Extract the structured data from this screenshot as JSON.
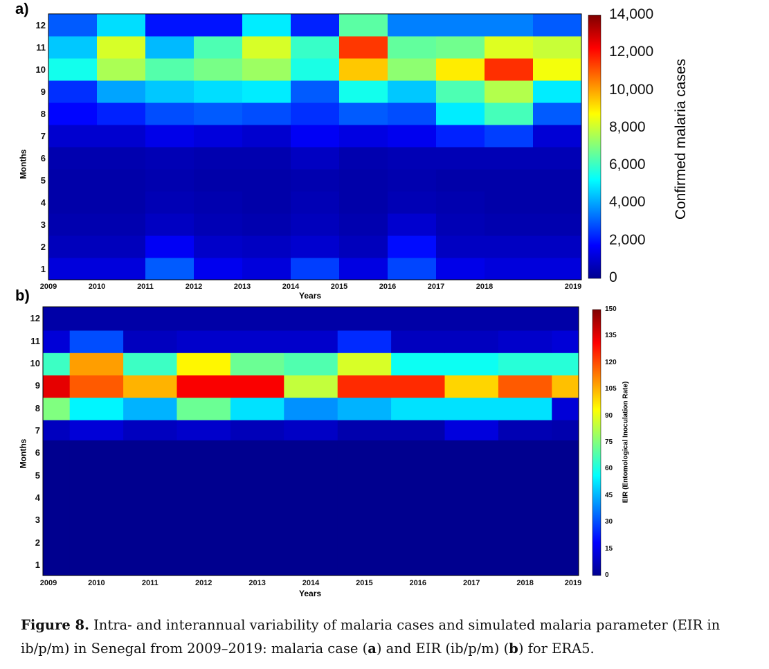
{
  "chart_data": [
    {
      "panel": "a)",
      "type": "heatmap",
      "xlabel": "Years",
      "ylabel": "Months",
      "colorbar_label": "Confirmed malaria cases",
      "x_tick_labels": [
        "2009",
        "2010",
        "2011",
        "2012",
        "2013",
        "2014",
        "2015",
        "2016",
        "2017",
        "2018",
        "2019"
      ],
      "y_tick_labels": [
        "1",
        "2",
        "3",
        "4",
        "5",
        "6",
        "7",
        "8",
        "9",
        "10",
        "11",
        "12"
      ],
      "colorbar_ticks": [
        "0",
        "2,000",
        "4,000",
        "6,000",
        "8,000",
        "10,000",
        "12,000",
        "14,000"
      ],
      "colorbar_range": [
        0,
        14000
      ],
      "years": [
        2009,
        2010,
        2011,
        2012,
        2013,
        2014,
        2015,
        2016,
        2017,
        2018,
        2019
      ],
      "months": [
        1,
        2,
        3,
        4,
        5,
        6,
        7,
        8,
        9,
        10,
        11,
        12
      ],
      "values_by_month": [
        [
          1200,
          1200,
          3000,
          1500,
          1200,
          2600,
          1300,
          2700,
          1400,
          1200,
          1200
        ],
        [
          700,
          700,
          1600,
          900,
          800,
          1000,
          700,
          1900,
          800,
          800,
          800
        ],
        [
          500,
          500,
          800,
          600,
          500,
          700,
          500,
          1000,
          600,
          500,
          500
        ],
        [
          400,
          400,
          600,
          500,
          400,
          600,
          400,
          600,
          500,
          400,
          400
        ],
        [
          400,
          400,
          500,
          400,
          400,
          500,
          400,
          500,
          400,
          400,
          400
        ],
        [
          500,
          500,
          600,
          500,
          500,
          800,
          500,
          600,
          600,
          600,
          600
        ],
        [
          1000,
          1000,
          1400,
          1200,
          1000,
          1600,
          1300,
          1500,
          2200,
          2600,
          1100
        ],
        [
          1800,
          2200,
          2800,
          3000,
          2800,
          2400,
          3000,
          2800,
          5000,
          6200,
          3000
        ],
        [
          2400,
          4000,
          4500,
          4800,
          5000,
          3000,
          5500,
          4500,
          6300,
          7700,
          5000
        ],
        [
          5500,
          7600,
          6400,
          6900,
          7400,
          5600,
          9500,
          7200,
          9000,
          11600,
          8600
        ],
        [
          4500,
          8200,
          4300,
          6300,
          8200,
          6000,
          11500,
          6600,
          6800,
          8300,
          8000
        ],
        [
          3000,
          4800,
          2000,
          2000,
          5000,
          2200,
          6500,
          3500,
          3500,
          3500,
          3000
        ]
      ]
    },
    {
      "panel": "b)",
      "type": "heatmap",
      "xlabel": "Years",
      "ylabel": "Months",
      "colorbar_label": "EIR (Entomological Inoculation Rate)",
      "x_tick_labels": [
        "2009",
        "2010",
        "2011",
        "2012",
        "2013",
        "2014",
        "2015",
        "2016",
        "2017",
        "2018",
        "2019"
      ],
      "y_tick_labels": [
        "1",
        "2",
        "3",
        "4",
        "5",
        "6",
        "7",
        "8",
        "9",
        "10",
        "11",
        "12"
      ],
      "colorbar_ticks": [
        "0",
        "15",
        "30",
        "45",
        "60",
        "75",
        "90",
        "105",
        "120",
        "135",
        "150"
      ],
      "colorbar_range": [
        0,
        150
      ],
      "x_range": [
        2009,
        2019
      ],
      "column_edges": [
        2009,
        2009.5,
        2010.5,
        2011.5,
        2012.5,
        2013.5,
        2014.5,
        2015.5,
        2016.5,
        2017.5,
        2018.5,
        2019
      ],
      "bands": [
        "1-6",
        "6",
        "7",
        "8-9",
        "9-10",
        "11",
        "12"
      ],
      "values_by_band": [
        [
          0,
          0,
          0,
          0,
          0,
          0,
          0,
          0,
          0,
          0,
          0
        ],
        [
          8,
          12,
          8,
          10,
          7,
          9,
          5,
          5,
          13,
          6,
          5
        ],
        [
          75,
          55,
          45,
          72,
          52,
          40,
          45,
          52,
          52,
          52,
          12
        ],
        [
          135,
          118,
          105,
          132,
          132,
          85,
          125,
          125,
          100,
          118,
          103
        ],
        [
          65,
          108,
          65,
          95,
          72,
          68,
          88,
          58,
          58,
          62,
          62
        ],
        [
          12,
          30,
          8,
          10,
          10,
          10,
          25,
          8,
          8,
          10,
          12
        ],
        [
          4,
          4,
          4,
          4,
          4,
          4,
          4,
          4,
          4,
          4,
          4
        ]
      ]
    }
  ],
  "caption": {
    "label": "Figure 8.",
    "text": "Intra- and interannual variability of malaria cases and simulated malaria parameter (EIR in ib/p/m) in Senegal from 2009–2019: malaria case (",
    "bold_a": "a",
    "mid": ") and EIR (ib/p/m) (",
    "bold_b": "b",
    "end": ") for ERA5."
  }
}
